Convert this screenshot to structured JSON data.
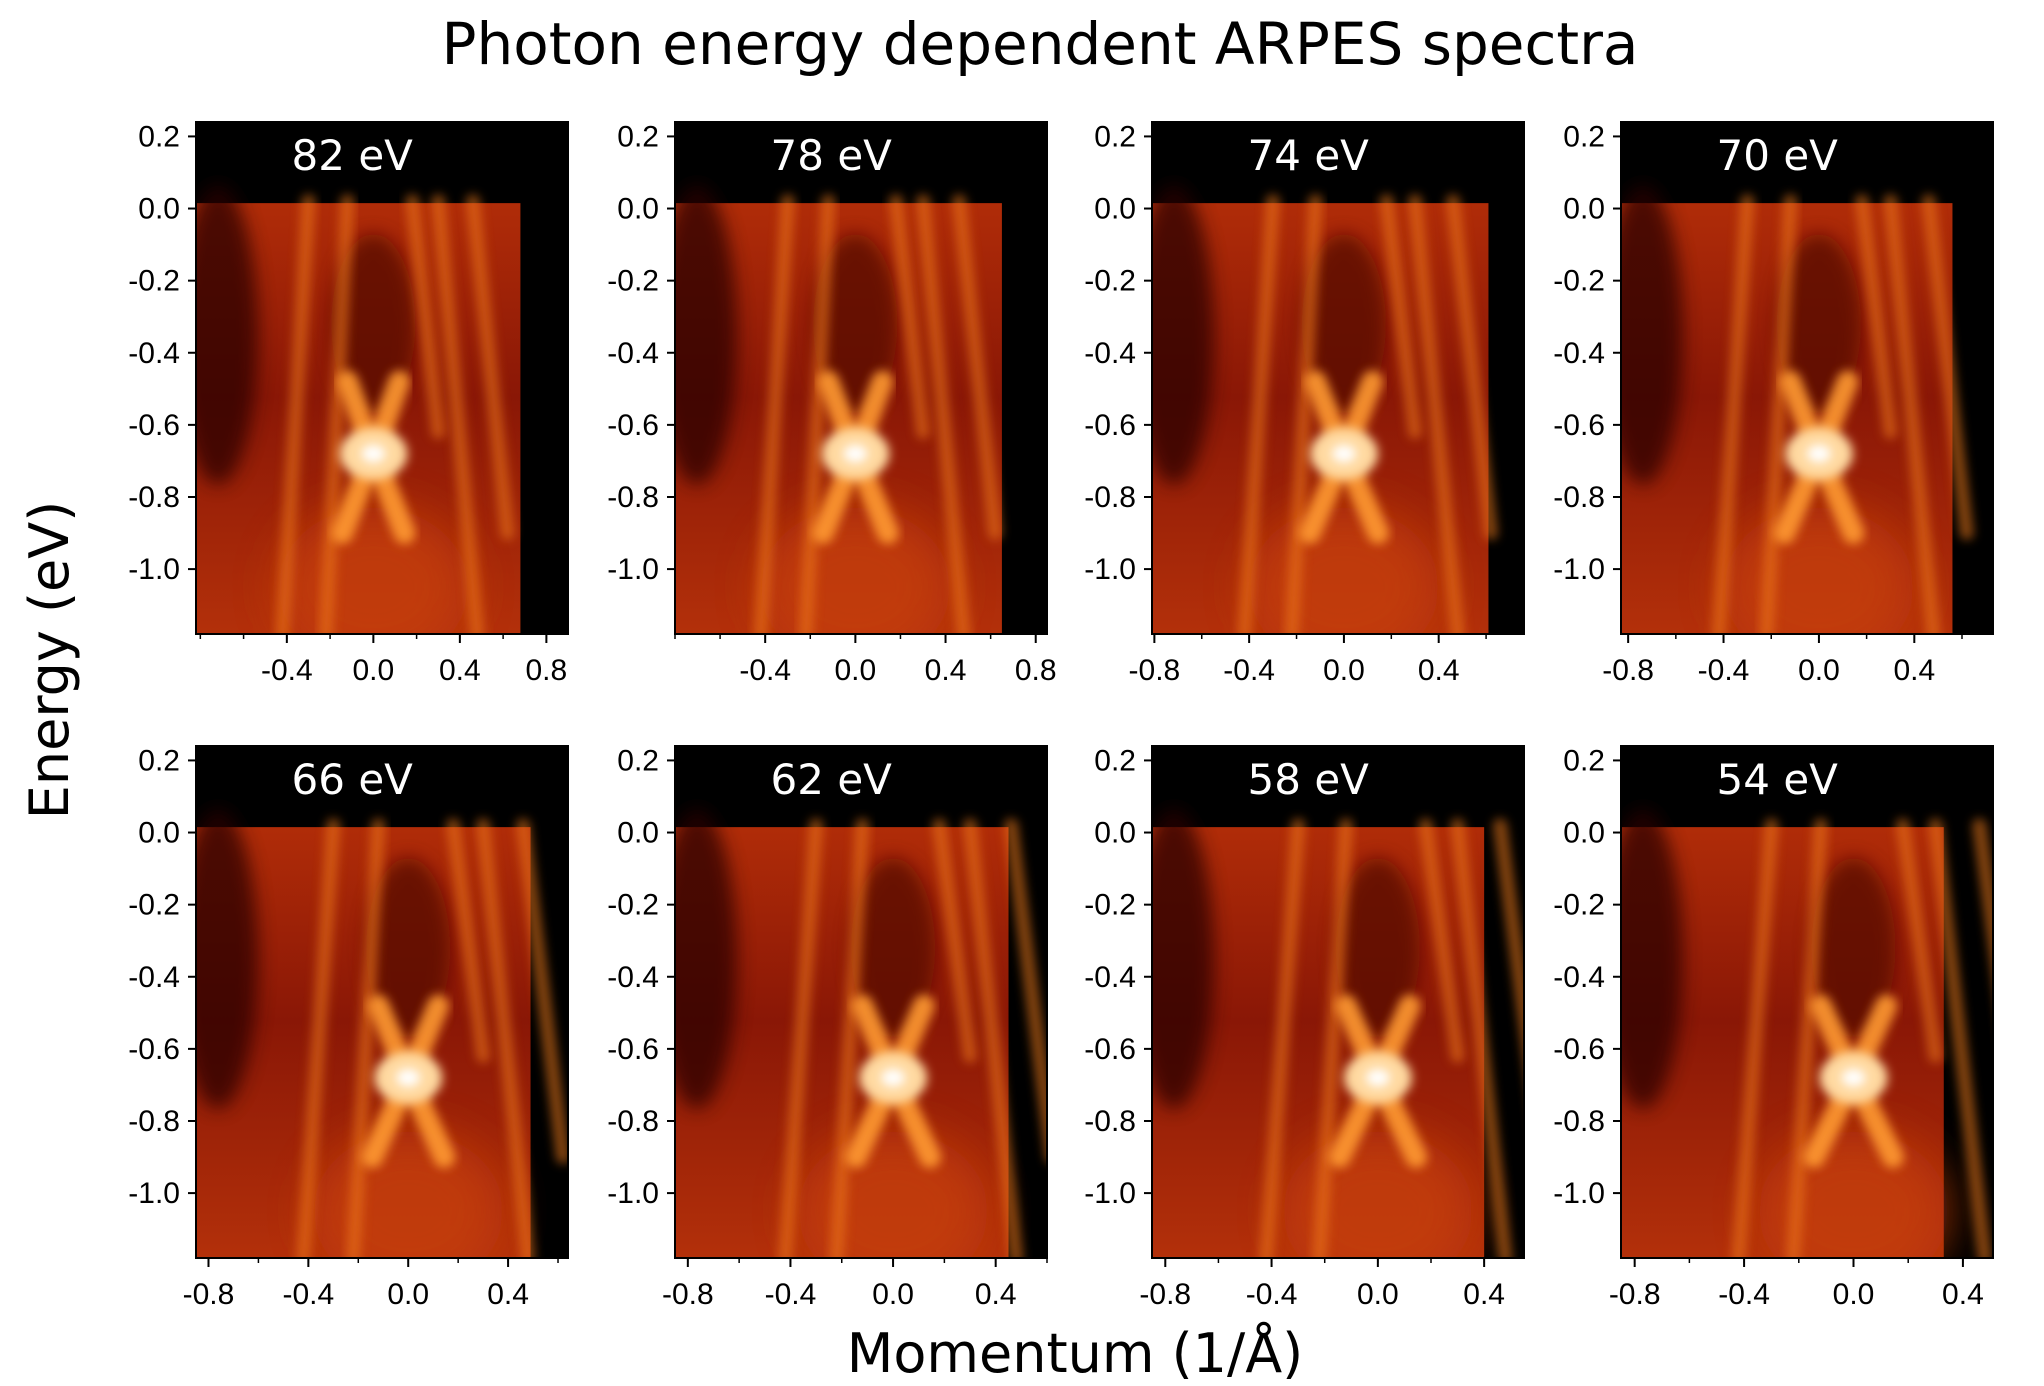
{
  "title": "Photon energy dependent ARPES spectra",
  "colormap": {
    "black": "#000000",
    "dark": "#6e0e04",
    "mid": "#c23a0a",
    "bright": "#f07b1a",
    "peak": "#ffffff"
  },
  "chart_data": [
    {
      "type": "heatmap",
      "panel": "82 eV",
      "photon_energy_eV": 82,
      "xlabel": "Momentum (1/Å)",
      "ylabel": "Energy (eV)",
      "xlim": [
        -0.82,
        0.9
      ],
      "ylim": [
        -1.18,
        0.24
      ],
      "xticks": [
        "-0.4",
        "0.0",
        "0.4",
        "0.8"
      ],
      "yticks": [
        "0.2",
        "0.0",
        "-0.2",
        "-0.4",
        "-0.6",
        "-0.8",
        "-1.0"
      ],
      "dirac_point": {
        "k": 0.0,
        "E": -0.68
      },
      "fermi_level": 0.0,
      "data_k_range": [
        -0.82,
        0.68
      ]
    },
    {
      "type": "heatmap",
      "panel": "78 eV",
      "photon_energy_eV": 78,
      "xlabel": "Momentum (1/Å)",
      "ylabel": "Energy (eV)",
      "xlim": [
        -0.8,
        0.85
      ],
      "ylim": [
        -1.18,
        0.24
      ],
      "xticks": [
        "-0.4",
        "0.0",
        "0.4",
        "0.8"
      ],
      "yticks": [
        "0.2",
        "0.0",
        "-0.2",
        "-0.4",
        "-0.6",
        "-0.8",
        "-1.0"
      ],
      "dirac_point": {
        "k": 0.0,
        "E": -0.68
      },
      "fermi_level": 0.0,
      "data_k_range": [
        -0.8,
        0.65
      ]
    },
    {
      "type": "heatmap",
      "panel": "74 eV",
      "photon_energy_eV": 74,
      "xlabel": "Momentum (1/Å)",
      "ylabel": "Energy (eV)",
      "xlim": [
        -0.81,
        0.76
      ],
      "ylim": [
        -1.18,
        0.24
      ],
      "xticks": [
        "-0.8",
        "-0.4",
        "0.0",
        "0.4"
      ],
      "yticks": [
        "0.2",
        "0.0",
        "-0.2",
        "-0.4",
        "-0.6",
        "-0.8",
        "-1.0"
      ],
      "dirac_point": {
        "k": 0.0,
        "E": -0.68
      },
      "fermi_level": 0.0,
      "data_k_range": [
        -0.81,
        0.61
      ]
    },
    {
      "type": "heatmap",
      "panel": "70 eV",
      "photon_energy_eV": 70,
      "xlabel": "Momentum (1/Å)",
      "ylabel": "Energy (eV)",
      "xlim": [
        -0.83,
        0.73
      ],
      "ylim": [
        -1.18,
        0.24
      ],
      "xticks": [
        "-0.8",
        "-0.4",
        "0.0",
        "0.4"
      ],
      "yticks": [
        "0.2",
        "0.0",
        "-0.2",
        "-0.4",
        "-0.6",
        "-0.8",
        "-1.0"
      ],
      "dirac_point": {
        "k": 0.0,
        "E": -0.68
      },
      "fermi_level": 0.0,
      "data_k_range": [
        -0.83,
        0.56
      ]
    },
    {
      "type": "heatmap",
      "panel": "66 eV",
      "photon_energy_eV": 66,
      "xlabel": "Momentum (1/Å)",
      "ylabel": "Energy (eV)",
      "xlim": [
        -0.85,
        0.64
      ],
      "ylim": [
        -1.18,
        0.24
      ],
      "xticks": [
        "-0.8",
        "-0.4",
        "0.0",
        "0.4"
      ],
      "yticks": [
        "0.2",
        "0.0",
        "-0.2",
        "-0.4",
        "-0.6",
        "-0.8",
        "-1.0"
      ],
      "dirac_point": {
        "k": 0.0,
        "E": -0.68
      },
      "fermi_level": 0.0,
      "data_k_range": [
        -0.85,
        0.49
      ]
    },
    {
      "type": "heatmap",
      "panel": "62 eV",
      "photon_energy_eV": 62,
      "xlabel": "Momentum (1/Å)",
      "ylabel": "Energy (eV)",
      "xlim": [
        -0.85,
        0.6
      ],
      "ylim": [
        -1.18,
        0.24
      ],
      "xticks": [
        "-0.8",
        "-0.4",
        "0.0",
        "0.4"
      ],
      "yticks": [
        "0.2",
        "0.0",
        "-0.2",
        "-0.4",
        "-0.6",
        "-0.8",
        "-1.0"
      ],
      "dirac_point": {
        "k": 0.0,
        "E": -0.68
      },
      "fermi_level": 0.0,
      "data_k_range": [
        -0.85,
        0.45
      ]
    },
    {
      "type": "heatmap",
      "panel": "58 eV",
      "photon_energy_eV": 58,
      "xlabel": "Momentum (1/Å)",
      "ylabel": "Energy (eV)",
      "xlim": [
        -0.85,
        0.55
      ],
      "ylim": [
        -1.18,
        0.24
      ],
      "xticks": [
        "-0.8",
        "-0.4",
        "0.0",
        "0.4"
      ],
      "yticks": [
        "0.2",
        "0.0",
        "-0.2",
        "-0.4",
        "-0.6",
        "-0.8",
        "-1.0"
      ],
      "dirac_point": {
        "k": 0.0,
        "E": -0.68
      },
      "fermi_level": 0.0,
      "data_k_range": [
        -0.85,
        0.4
      ]
    },
    {
      "type": "heatmap",
      "panel": "54 eV",
      "photon_energy_eV": 54,
      "xlabel": "Momentum (1/Å)",
      "ylabel": "Energy (eV)",
      "xlim": [
        -0.85,
        0.51
      ],
      "ylim": [
        -1.18,
        0.24
      ],
      "xticks": [
        "-0.8",
        "-0.4",
        "0.0",
        "0.4"
      ],
      "yticks": [
        "0.2",
        "0.0",
        "-0.2",
        "-0.4",
        "-0.6",
        "-0.8",
        "-1.0"
      ],
      "dirac_point": {
        "k": 0.0,
        "E": -0.68
      },
      "fermi_level": 0.0,
      "data_k_range": [
        -0.85,
        0.33
      ]
    }
  ],
  "shared_xlabel": "Momentum (1/Å)",
  "shared_ylabel": "Energy (eV)"
}
